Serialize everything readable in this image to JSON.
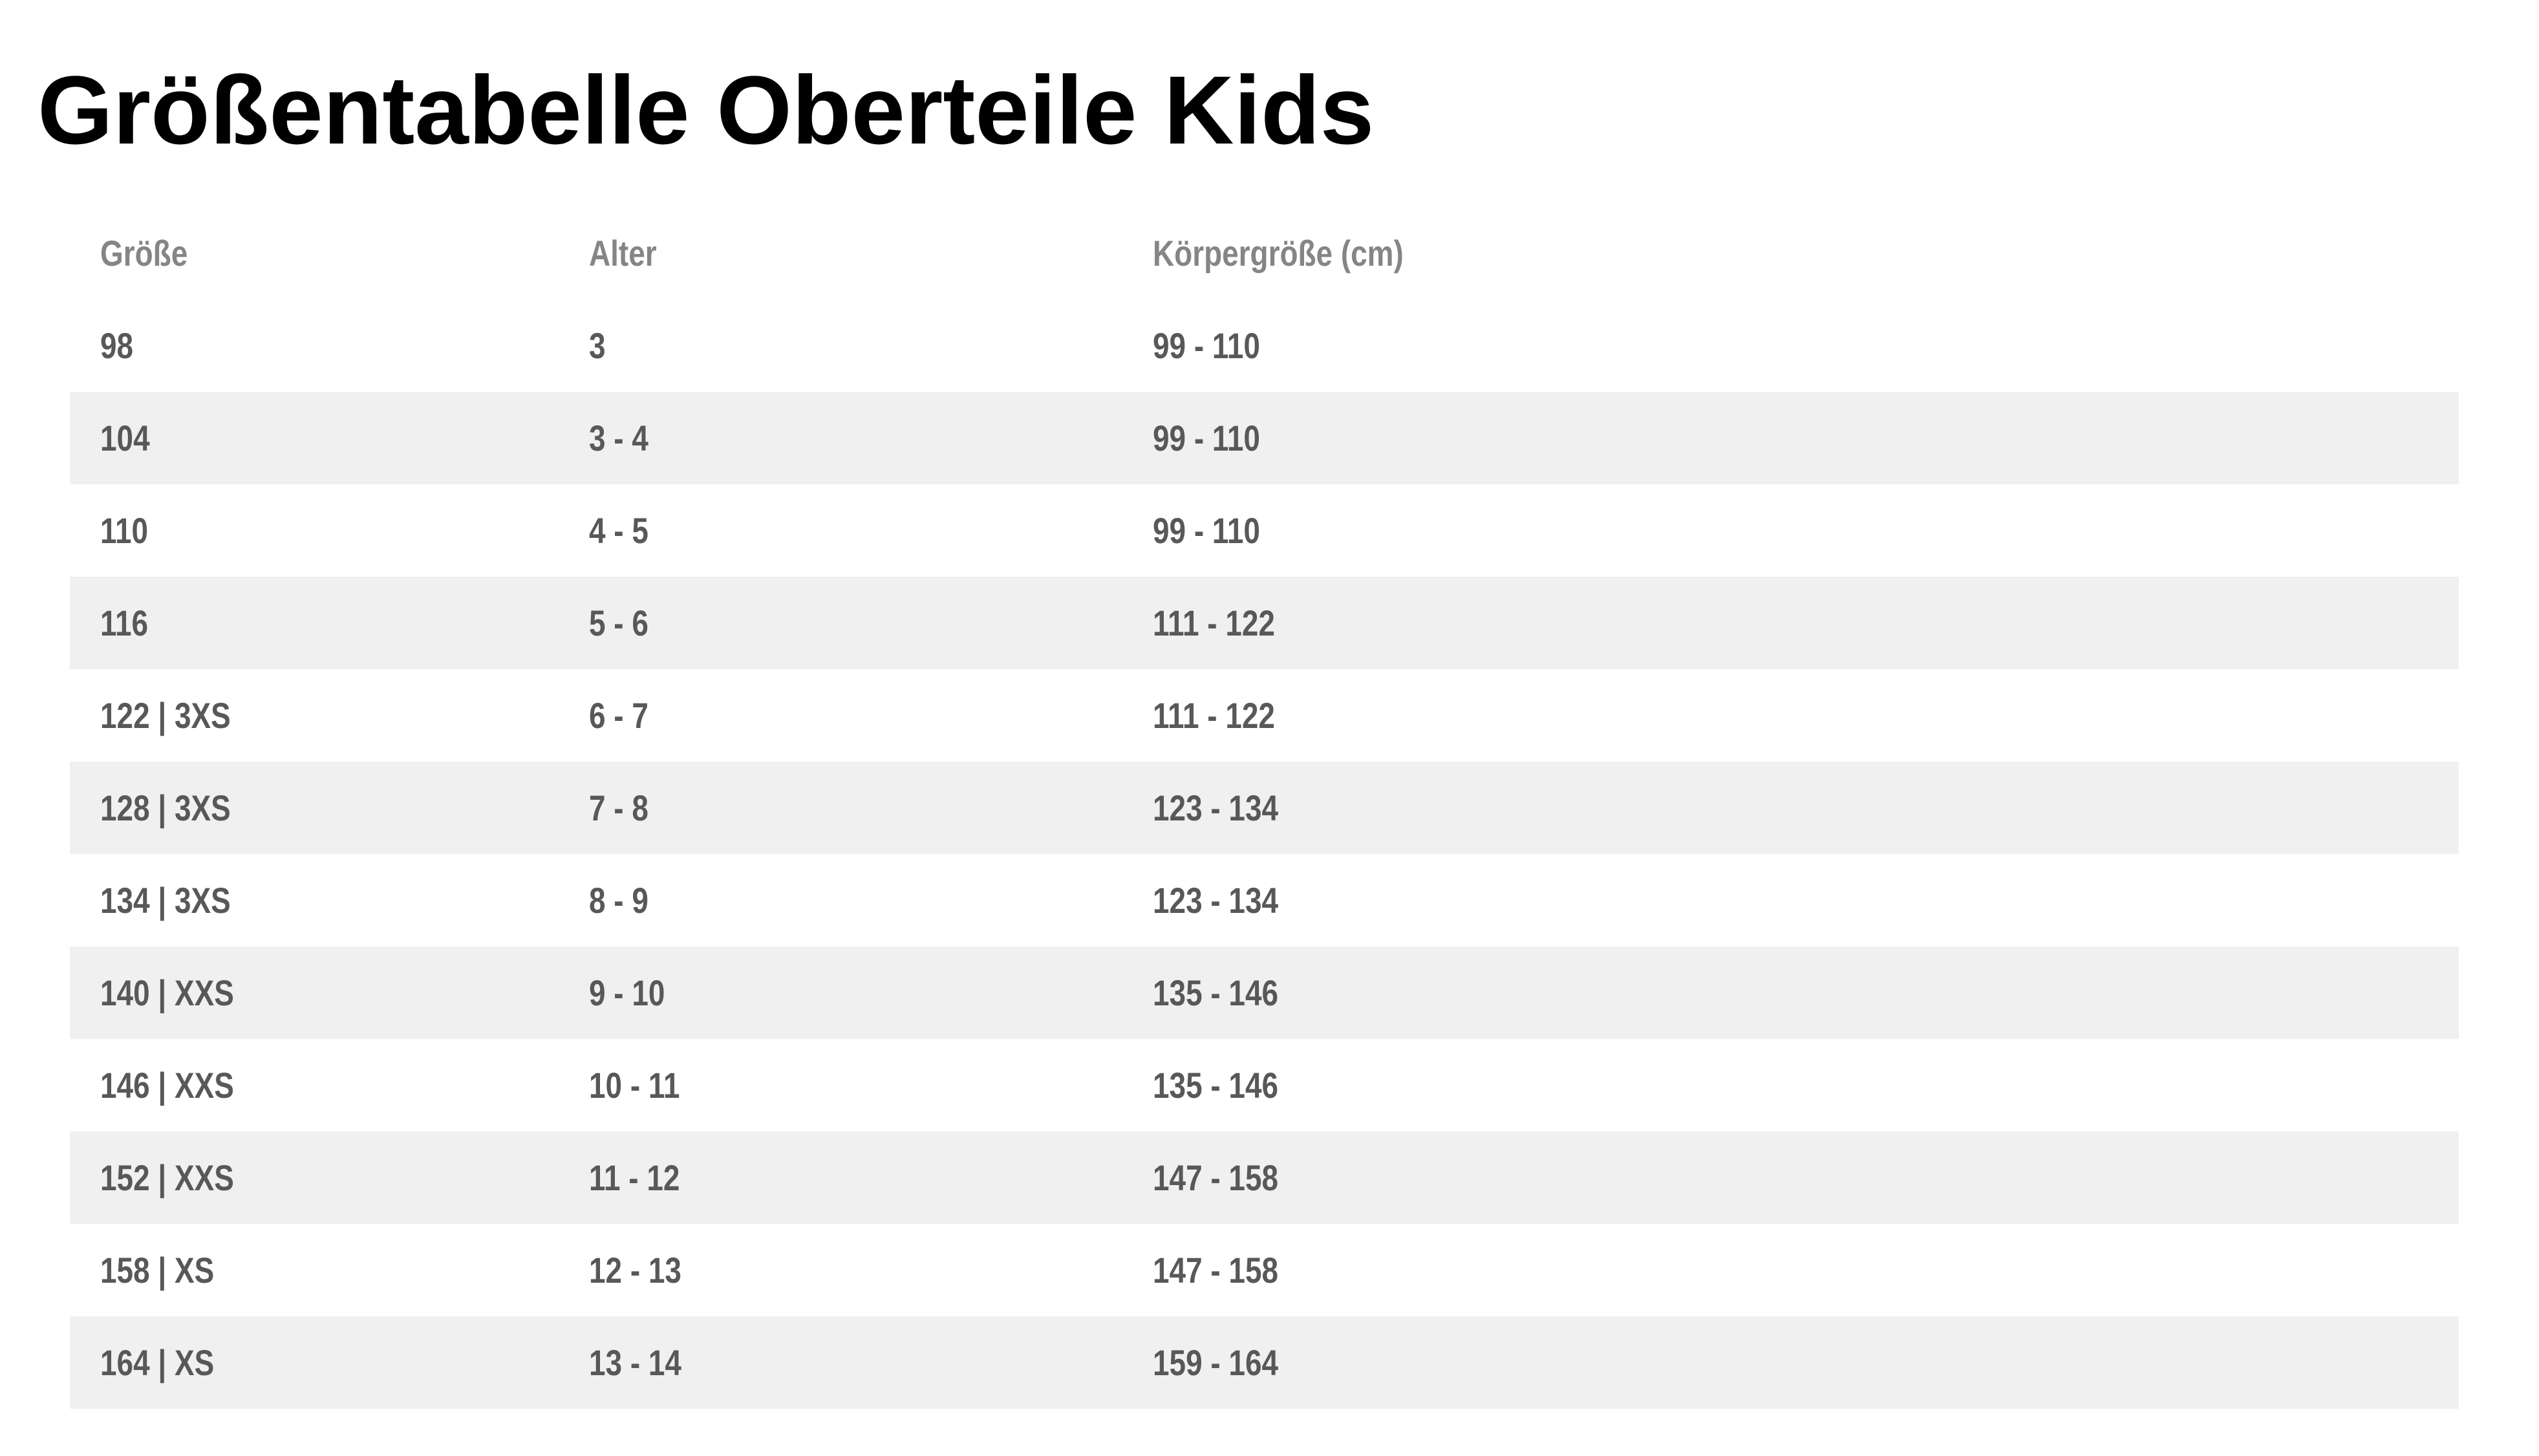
{
  "title": "Größentabelle Oberteile Kids",
  "table": {
    "columns": [
      "Größe",
      "Alter",
      "Körpergröße (cm)"
    ],
    "rows": [
      [
        "98",
        "3",
        "99 - 110"
      ],
      [
        "104",
        "3 - 4",
        "99 - 110"
      ],
      [
        "110",
        "4 - 5",
        "99 - 110"
      ],
      [
        "116",
        "5 - 6",
        "111 - 122"
      ],
      [
        "122 | 3XS",
        "6 - 7",
        "111 - 122"
      ],
      [
        "128 | 3XS",
        "7 - 8",
        "123 - 134"
      ],
      [
        "134 | 3XS",
        "8 - 9",
        "123 - 134"
      ],
      [
        "140 | XXS",
        "9 - 10",
        "135 - 146"
      ],
      [
        "146 | XXS",
        "10 - 11",
        "135 - 146"
      ],
      [
        "152 | XXS",
        "11 - 12",
        "147 - 158"
      ],
      [
        "158 | XS",
        "12 - 13",
        "147 - 158"
      ],
      [
        "164 | XS",
        "13 - 14",
        "159 - 164"
      ]
    ]
  }
}
